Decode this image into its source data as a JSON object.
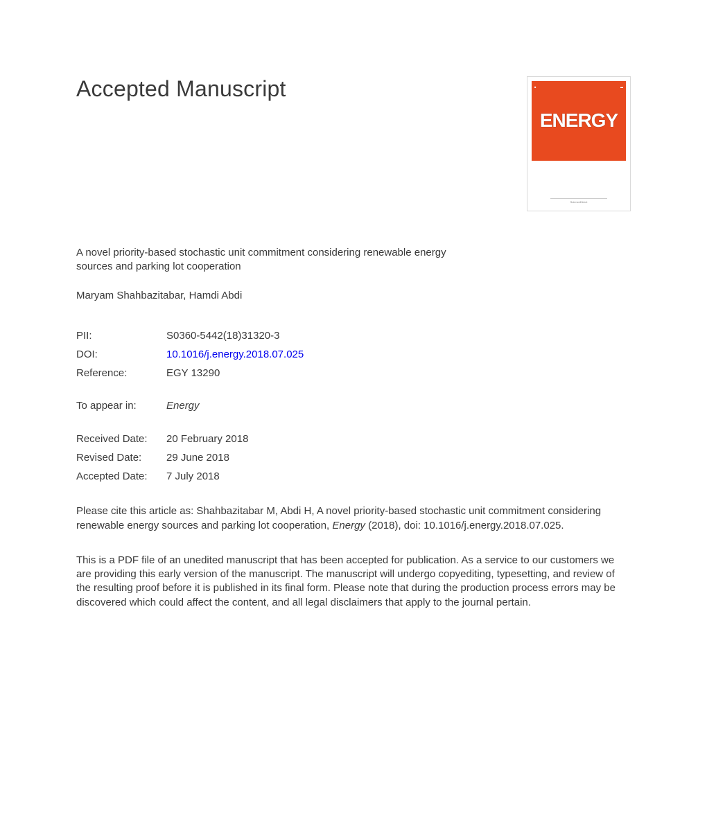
{
  "header": {
    "title": "Accepted Manuscript"
  },
  "cover": {
    "logo_text": "ENERGY",
    "background_color": "#e84a1f",
    "text_color": "#ffffff",
    "footer_text": "ScienceDirect"
  },
  "article": {
    "title": "A novel priority-based stochastic unit commitment considering renewable energy sources and parking lot cooperation",
    "authors": "Maryam Shahbazitabar, Hamdi Abdi"
  },
  "meta": {
    "pii": {
      "label": "PII:",
      "value": "S0360-5442(18)31320-3"
    },
    "doi": {
      "label": "DOI:",
      "value": "10.1016/j.energy.2018.07.025",
      "link_color": "#0000ee"
    },
    "reference": {
      "label": "Reference:",
      "value": "EGY 13290"
    },
    "to_appear_in": {
      "label": "To appear in:",
      "value": "Energy"
    },
    "received_date": {
      "label": "Received Date:",
      "value": "20 February 2018"
    },
    "revised_date": {
      "label": "Revised Date:",
      "value": "29 June 2018"
    },
    "accepted_date": {
      "label": "Accepted Date:",
      "value": "7 July 2018"
    }
  },
  "citation": {
    "prefix": "Please cite this article as: Shahbazitabar M, Abdi H, A novel priority-based stochastic unit commitment considering renewable energy sources and parking lot cooperation, ",
    "journal": "Energy",
    "suffix": " (2018), doi: 10.1016/j.energy.2018.07.025."
  },
  "disclaimer": "This is a PDF file of an unedited manuscript that has been accepted for publication. As a service to our customers we are providing this early version of the manuscript. The manuscript will undergo copyediting, typesetting, and review of the resulting proof before it is published in its final form. Please note that during the production process errors may be discovered which could affect the content, and all legal disclaimers that apply to the journal pertain.",
  "colors": {
    "text": "#3a3a3a",
    "background": "#ffffff",
    "link": "#0000ee",
    "cover_accent": "#e84a1f"
  },
  "typography": {
    "title_fontsize": 32,
    "body_fontsize": 15,
    "font_family": "Arial"
  }
}
